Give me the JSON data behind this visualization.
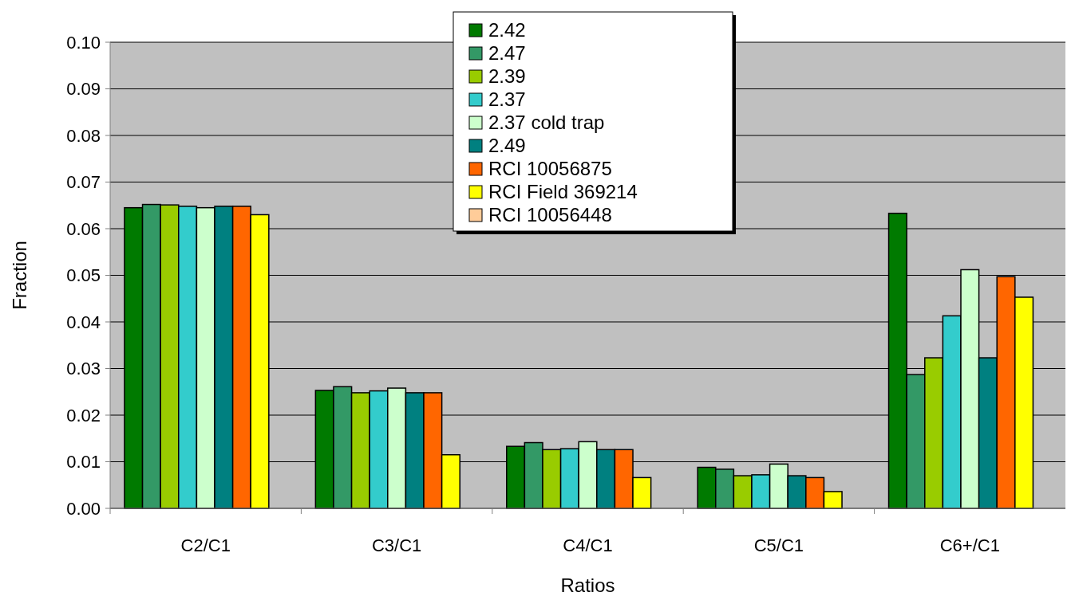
{
  "chart_data": {
    "type": "bar",
    "xlabel": "Ratios",
    "ylabel": "Fraction",
    "categories": [
      "C2/C1",
      "C3/C1",
      "C4/C1",
      "C5/C1",
      "C6+/C1"
    ],
    "series": [
      {
        "name": "2.42",
        "color": "#007a00",
        "values": [
          0.0645,
          0.0253,
          0.0133,
          0.0088,
          0.0633
        ]
      },
      {
        "name": "2.47",
        "color": "#339966",
        "values": [
          0.0652,
          0.0261,
          0.0141,
          0.0084,
          0.0287
        ]
      },
      {
        "name": "2.39",
        "color": "#99cc00",
        "values": [
          0.0651,
          0.0248,
          0.0126,
          0.007,
          0.0323
        ]
      },
      {
        "name": "2.37",
        "color": "#33cccc",
        "values": [
          0.0648,
          0.0252,
          0.0128,
          0.0072,
          0.0413
        ]
      },
      {
        "name": "2.37 cold trap",
        "color": "#ccffcc",
        "values": [
          0.0645,
          0.0258,
          0.0143,
          0.0095,
          0.0512
        ]
      },
      {
        "name": "2.49",
        "color": "#008080",
        "values": [
          0.0648,
          0.0248,
          0.0126,
          0.007,
          0.0323
        ]
      },
      {
        "name": "RCI 10056875",
        "color": "#ff6600",
        "values": [
          0.0648,
          0.0248,
          0.0126,
          0.0066,
          0.0497
        ]
      },
      {
        "name": "RCI Field 369214",
        "color": "#ffff00",
        "values": [
          0.063,
          0.0115,
          0.0066,
          0.0036,
          0.0453
        ]
      },
      {
        "name": "RCI 10056448",
        "color": "#ffcc99",
        "values": [
          null,
          null,
          null,
          null,
          null
        ]
      }
    ],
    "ylim": [
      0,
      0.1
    ],
    "yticks": [
      {
        "value": 0,
        "label": "0.00"
      },
      {
        "value": 0.01,
        "label": "0.01"
      },
      {
        "value": 0.02,
        "label": "0.02"
      },
      {
        "value": 0.03,
        "label": "0.03"
      },
      {
        "value": 0.04,
        "label": "0.04"
      },
      {
        "value": 0.05,
        "label": "0.05"
      },
      {
        "value": 0.06,
        "label": "0.06"
      },
      {
        "value": 0.07,
        "label": "0.07"
      },
      {
        "value": 0.08,
        "label": "0.08"
      },
      {
        "value": 0.09,
        "label": "0.09"
      },
      {
        "value": 0.1,
        "label": "0.10"
      }
    ],
    "grid": "y",
    "legend": "top"
  }
}
